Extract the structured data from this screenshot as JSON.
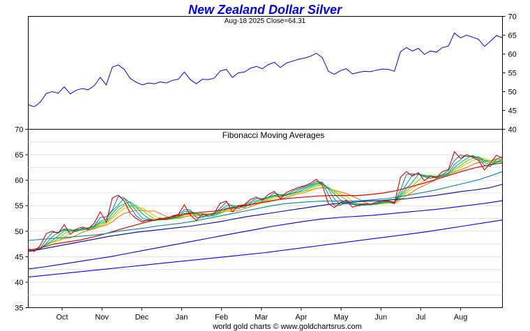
{
  "chart_data": [
    {
      "type": "line",
      "title": "New Zealand Dollar Silver",
      "subtitle": "Aug-18  2025   Close=64.31",
      "x_tick_labels": [
        "Oct",
        "Nov",
        "Dec",
        "Jan",
        "Feb",
        "Mar",
        "Apr",
        "May",
        "Jun",
        "Jul",
        "Aug"
      ],
      "ylim": [
        40,
        70
      ],
      "y_ticks": [
        40,
        45,
        50,
        55,
        60,
        65,
        70
      ],
      "y_axis_side": "right",
      "grid": false,
      "colors": {
        "title": "#0000ee",
        "price": "#0000ff"
      },
      "series": [
        {
          "values": [
            46.5,
            46,
            47.2,
            49.5,
            50,
            49.6,
            51.3,
            49.4,
            50.4,
            50.8,
            50.5,
            51.6,
            53.8,
            51.8,
            56.5,
            57.1,
            55.9,
            53.5,
            52.5,
            51.8,
            52.3,
            52.1,
            52.6,
            52.3,
            53,
            53.3,
            55.2,
            53.2,
            52.1,
            53.3,
            53.2,
            53.6,
            55.5,
            55.9,
            53.8,
            55,
            55.2,
            56.2,
            56.7,
            56.1,
            57.2,
            57.8,
            56.4,
            57.6,
            58.1,
            58.6,
            58.9,
            59.4,
            60.2,
            59,
            55.4,
            54.6,
            55.6,
            56.1,
            54.7,
            55.1,
            55.4,
            55.3,
            55.7,
            56,
            55.9,
            55.4,
            60.6,
            61.7,
            60.8,
            61.5,
            59.9,
            60.8,
            60.5,
            61.7,
            62.1,
            65.6,
            64.3,
            65,
            64.5,
            63.9,
            62,
            63.4,
            64.9,
            64.31
          ]
        }
      ]
    },
    {
      "type": "line",
      "title": "Fibonacci Moving Averages",
      "ylim": [
        35,
        70
      ],
      "y_ticks": [
        35,
        40,
        45,
        50,
        55,
        60,
        65,
        70
      ],
      "y_axis_side": "left",
      "grid": true,
      "legend": "none",
      "colors": {
        "price": "#dd0000",
        "fast_averages": [
          "#ff6600",
          "#cccc00",
          "#66cc00",
          "#00aa44",
          "#009999",
          "#008080"
        ],
        "slow_averages": [
          "#dd0000",
          "#008888",
          "#0000aa",
          "#0000dd",
          "#0000ff",
          "#000000"
        ]
      },
      "series": [
        {
          "values": [
            46.5,
            46,
            47.2,
            49.5,
            50,
            49.6,
            51.3,
            49.4,
            50.4,
            50.8,
            50.5,
            51.6,
            53.8,
            51.8,
            56.5,
            57.1,
            55.9,
            53.5,
            52.5,
            51.8,
            52.3,
            52.1,
            52.6,
            52.3,
            53,
            53.3,
            55.2,
            53.2,
            52.1,
            53.3,
            53.2,
            53.6,
            55.5,
            55.9,
            53.8,
            55,
            55.2,
            56.2,
            56.7,
            56.1,
            57.2,
            57.8,
            56.4,
            57.6,
            58.1,
            58.6,
            58.9,
            59.4,
            60.2,
            59,
            55.4,
            54.6,
            55.6,
            56.1,
            54.7,
            55.1,
            55.4,
            55.3,
            55.7,
            56,
            55.9,
            55.4,
            60.6,
            61.7,
            60.8,
            61.5,
            59.9,
            60.8,
            60.5,
            61.7,
            62.1,
            65.6,
            64.3,
            65,
            64.5,
            63.9,
            62,
            63.4,
            64.9,
            64.31
          ]
        },
        {
          "values": [
            46.2,
            46.8,
            47.5,
            47.9,
            48.3,
            48.9,
            49.6,
            50.4,
            51.1,
            51.8,
            52.4,
            52.9,
            53.4,
            53.7,
            53.9,
            54.3,
            54.8,
            55.3,
            55.8,
            56.2,
            56.5,
            56.7,
            56.9,
            57.0,
            57.0,
            57.0,
            57.2,
            57.5,
            58.0,
            58.7,
            59.4,
            60.2,
            61.0,
            61.8,
            62.5,
            63.0,
            63.4
          ]
        },
        {
          "values": [
            48.2,
            48.4,
            48.6,
            48.8,
            49.0,
            49.2,
            49.5,
            50.0,
            50.3,
            50.6,
            51.0,
            51.3,
            51.6,
            52.0,
            52.5,
            53.0,
            53.5,
            54.0,
            54.5,
            55.0,
            55.4,
            55.6,
            55.8,
            55.9,
            55.9,
            55.9,
            56.0,
            56.2,
            56.4,
            56.8,
            57.2,
            57.7,
            58.2,
            58.8,
            59.4,
            60.0,
            60.8,
            61.7
          ]
        },
        {
          "values": [
            46.0,
            46.5,
            47.0,
            47.5,
            48.0,
            48.5,
            49.0,
            49.4,
            49.8,
            50.1,
            50.4,
            50.7,
            51.0,
            51.4,
            51.8,
            52.3,
            52.8,
            53.2,
            53.6,
            54.0,
            54.4,
            54.8,
            55.2,
            55.5,
            55.7,
            55.9,
            56.0,
            56.2,
            56.4,
            56.7,
            57.0,
            57.4,
            57.8,
            58.1,
            58.5,
            59.2
          ]
        },
        {
          "values": [
            42.6,
            43.0,
            43.5,
            44.0,
            44.5,
            45.0,
            45.6,
            46.2,
            46.8,
            47.4,
            48.0,
            48.6,
            49.2,
            49.8,
            50.4,
            51.0,
            51.5,
            52.0,
            52.4,
            52.7,
            52.9,
            53.1,
            53.4,
            53.7,
            54.0,
            54.3,
            54.7,
            55.1,
            55.5,
            56.0
          ]
        },
        {
          "values": [
            41.0,
            41.4,
            41.8,
            42.2,
            42.6,
            43.0,
            43.4,
            43.8,
            44.2,
            44.6,
            45.0,
            45.4,
            45.8,
            46.3,
            46.8,
            47.3,
            47.8,
            48.3,
            48.8,
            49.3,
            49.8,
            50.4,
            51.0,
            51.6,
            52.2
          ]
        }
      ]
    }
  ],
  "footer": "world gold charts © www.goldchartsrus.com"
}
